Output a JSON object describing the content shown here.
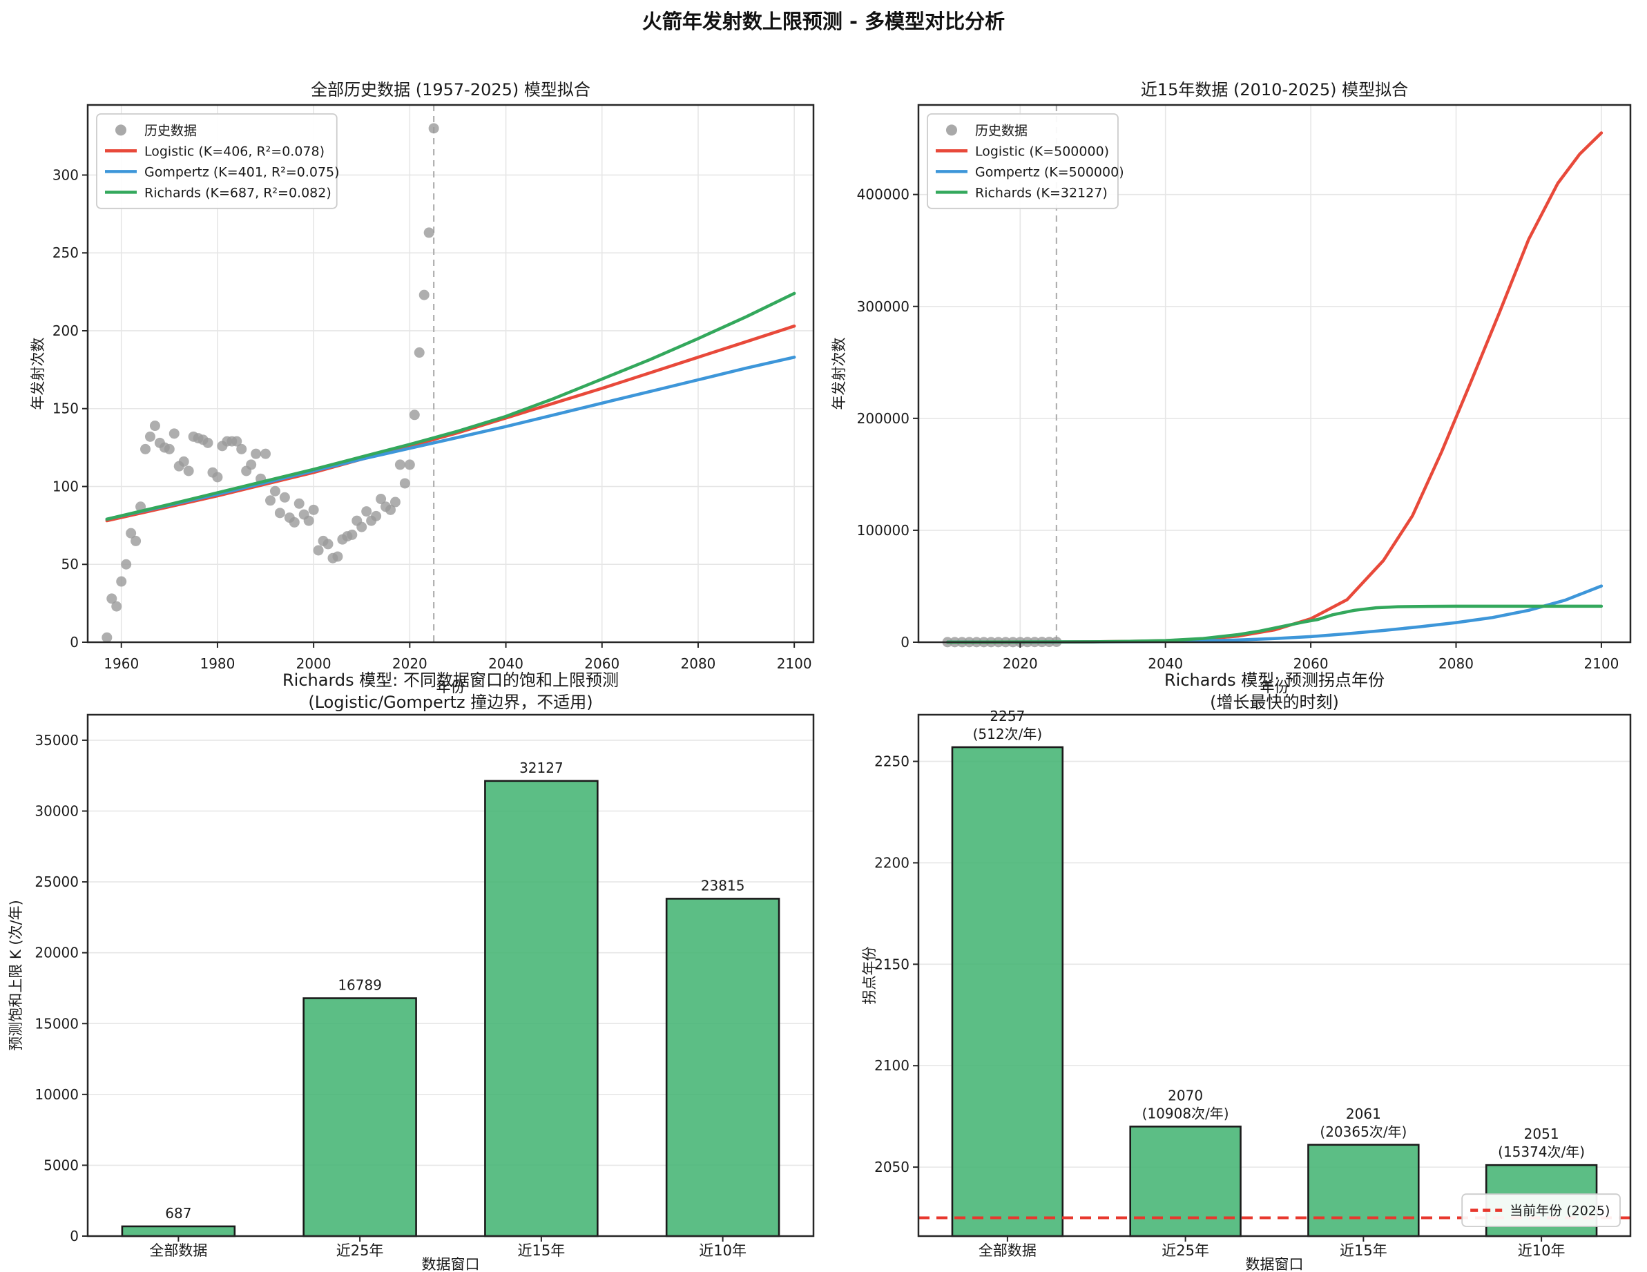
{
  "suptitle": "火箭年发射数上限预测 - 多模型对比分析",
  "colors": {
    "logistic_red": "#e8493a",
    "gompertz_blue": "#3d96d9",
    "richards_green": "#33a85c",
    "bar_green": "#3fb370",
    "bar_edge": "#1a1a1a",
    "history_gray": "#9a9a9a",
    "current_year_red": "#e8372d",
    "ref_line_gray": "#b0b0b0",
    "grid": "#e6e6e6",
    "spine": "#262626"
  },
  "chart_data": [
    {
      "id": "fit-all-history",
      "type": "scatter+line",
      "title_lines": [
        "全部历史数据 (1957-2025) 模型拟合"
      ],
      "xlabel": "年份",
      "ylabel": "年发射次数",
      "xlim": [
        1953,
        2104
      ],
      "ylim": [
        0,
        345
      ],
      "xticks": [
        1960,
        1980,
        2000,
        2020,
        2040,
        2060,
        2080,
        2100
      ],
      "yticks": [
        0,
        50,
        100,
        150,
        200,
        250,
        300
      ],
      "grid_x": true,
      "vline": {
        "x": 2025
      },
      "scatter": {
        "name": "历史数据",
        "color": "#9a9a9a",
        "years": [
          1957,
          1958,
          1959,
          1960,
          1961,
          1962,
          1963,
          1964,
          1965,
          1966,
          1967,
          1968,
          1969,
          1970,
          1971,
          1972,
          1973,
          1974,
          1975,
          1976,
          1977,
          1978,
          1979,
          1980,
          1981,
          1982,
          1983,
          1984,
          1985,
          1986,
          1987,
          1988,
          1989,
          1990,
          1991,
          1992,
          1993,
          1994,
          1995,
          1996,
          1997,
          1998,
          1999,
          2000,
          2001,
          2002,
          2003,
          2004,
          2005,
          2006,
          2007,
          2008,
          2009,
          2010,
          2011,
          2012,
          2013,
          2014,
          2015,
          2016,
          2017,
          2018,
          2019,
          2020,
          2021,
          2022,
          2023,
          2024,
          2025
        ],
        "values": [
          3,
          28,
          23,
          39,
          50,
          70,
          65,
          87,
          124,
          132,
          139,
          128,
          125,
          124,
          134,
          113,
          116,
          110,
          132,
          131,
          130,
          128,
          109,
          106,
          126,
          129,
          129,
          129,
          124,
          110,
          114,
          121,
          105,
          121,
          91,
          97,
          83,
          93,
          80,
          77,
          89,
          82,
          78,
          85,
          59,
          65,
          63,
          54,
          55,
          66,
          68,
          69,
          78,
          74,
          84,
          78,
          81,
          92,
          87,
          85,
          90,
          114,
          102,
          114,
          146,
          186,
          223,
          263,
          330
        ]
      },
      "series": [
        {
          "name": "Logistic (K=406, R²=0.078)",
          "color": "#e8493a",
          "points": [
            [
              1957,
              78
            ],
            [
              1970,
              87
            ],
            [
              1980,
              94
            ],
            [
              1990,
              101.5
            ],
            [
              2000,
              109
            ],
            [
              2010,
              117.5
            ],
            [
              2020,
              126
            ],
            [
              2030,
              134.5
            ],
            [
              2040,
              144
            ],
            [
              2050,
              153.5
            ],
            [
              2060,
              163
            ],
            [
              2070,
              173
            ],
            [
              2080,
              183
            ],
            [
              2090,
              193
            ],
            [
              2100,
              203
            ]
          ]
        },
        {
          "name": "Gompertz (K=401, R²=0.075)",
          "color": "#3d96d9",
          "points": [
            [
              1957,
              79
            ],
            [
              1970,
              88
            ],
            [
              1980,
              95
            ],
            [
              1990,
              102.5
            ],
            [
              2000,
              110
            ],
            [
              2010,
              117.5
            ],
            [
              2020,
              124.5
            ],
            [
              2030,
              131.5
            ],
            [
              2040,
              138.5
            ],
            [
              2050,
              146
            ],
            [
              2060,
              153.5
            ],
            [
              2070,
              161
            ],
            [
              2080,
              168.5
            ],
            [
              2090,
              176
            ],
            [
              2100,
              183
            ]
          ]
        },
        {
          "name": "Richards (K=687, R²=0.082)",
          "color": "#33a85c",
          "points": [
            [
              1957,
              79
            ],
            [
              1970,
              88.5
            ],
            [
              1980,
              96
            ],
            [
              1990,
              103.5
            ],
            [
              2000,
              111
            ],
            [
              2010,
              119
            ],
            [
              2020,
              127
            ],
            [
              2030,
              135.5
            ],
            [
              2040,
              145
            ],
            [
              2050,
              156.5
            ],
            [
              2060,
              169
            ],
            [
              2070,
              181.5
            ],
            [
              2080,
              195
            ],
            [
              2090,
              209
            ],
            [
              2100,
              224
            ]
          ]
        }
      ],
      "legend": {
        "pos": "upper-left",
        "entries": [
          {
            "kind": "marker",
            "color": "#9a9a9a",
            "label": "历史数据"
          },
          {
            "kind": "line",
            "color": "#e8493a",
            "label": "Logistic (K=406, R²=0.078)"
          },
          {
            "kind": "line",
            "color": "#3d96d9",
            "label": "Gompertz (K=401, R²=0.075)"
          },
          {
            "kind": "line",
            "color": "#33a85c",
            "label": "Richards (K=687, R²=0.082)"
          }
        ]
      }
    },
    {
      "id": "fit-recent-15",
      "type": "scatter+line",
      "title_lines": [
        "近15年数据 (2010-2025) 模型拟合"
      ],
      "xlabel": "年份",
      "ylabel": "年发射次数",
      "xlim": [
        2006,
        2104
      ],
      "ylim": [
        0,
        480000
      ],
      "xticks": [
        2020,
        2040,
        2060,
        2080,
        2100
      ],
      "yticks": [
        0,
        100000,
        200000,
        300000,
        400000
      ],
      "grid_x": true,
      "vline": {
        "x": 2025
      },
      "scatter": {
        "name": "历史数据",
        "color": "#9a9a9a",
        "years": [
          2010,
          2011,
          2012,
          2013,
          2014,
          2015,
          2016,
          2017,
          2018,
          2019,
          2020,
          2021,
          2022,
          2023,
          2024,
          2025
        ],
        "values": [
          74,
          84,
          78,
          81,
          92,
          87,
          85,
          90,
          114,
          102,
          114,
          146,
          186,
          223,
          263,
          330
        ]
      },
      "series": [
        {
          "name": "Logistic (K=500000)",
          "color": "#e8493a",
          "points": [
            [
              2010,
              60
            ],
            [
              2025,
              190
            ],
            [
              2030,
              400
            ],
            [
              2035,
              750
            ],
            [
              2040,
              1400
            ],
            [
              2045,
              2800
            ],
            [
              2050,
              5500
            ],
            [
              2055,
              11000
            ],
            [
              2060,
              21000
            ],
            [
              2065,
              38000
            ],
            [
              2070,
              73000
            ],
            [
              2074,
              113000
            ],
            [
              2078,
              170000
            ],
            [
              2082,
              232000
            ],
            [
              2086,
              295000
            ],
            [
              2090,
              360000
            ],
            [
              2094,
              410000
            ],
            [
              2097,
              436000
            ],
            [
              2100,
              455000
            ]
          ]
        },
        {
          "name": "Gompertz (K=500000)",
          "color": "#3d96d9",
          "points": [
            [
              2010,
              80
            ],
            [
              2030,
              300
            ],
            [
              2040,
              700
            ],
            [
              2050,
              2000
            ],
            [
              2055,
              3200
            ],
            [
              2060,
              5000
            ],
            [
              2065,
              7500
            ],
            [
              2070,
              10500
            ],
            [
              2075,
              13800
            ],
            [
              2080,
              17500
            ],
            [
              2085,
              22000
            ],
            [
              2090,
              28500
            ],
            [
              2095,
              37500
            ],
            [
              2100,
              50200
            ]
          ]
        },
        {
          "name": "Richards (K=32127)",
          "color": "#33a85c",
          "points": [
            [
              2010,
              80
            ],
            [
              2030,
              400
            ],
            [
              2035,
              800
            ],
            [
              2040,
              1500
            ],
            [
              2045,
              3200
            ],
            [
              2050,
              6800
            ],
            [
              2053,
              10000
            ],
            [
              2056,
              14000
            ],
            [
              2059,
              18000
            ],
            [
              2061,
              20365
            ],
            [
              2063,
              24500
            ],
            [
              2066,
              28500
            ],
            [
              2069,
              30800
            ],
            [
              2072,
              31700
            ],
            [
              2076,
              32050
            ],
            [
              2080,
              32127
            ],
            [
              2090,
              32127
            ],
            [
              2100,
              32127
            ]
          ]
        }
      ],
      "legend": {
        "pos": "upper-left",
        "entries": [
          {
            "kind": "marker",
            "color": "#9a9a9a",
            "label": "历史数据"
          },
          {
            "kind": "line",
            "color": "#e8493a",
            "label": "Logistic (K=500000)"
          },
          {
            "kind": "line",
            "color": "#3d96d9",
            "label": "Gompertz (K=500000)"
          },
          {
            "kind": "line",
            "color": "#33a85c",
            "label": "Richards (K=32127)"
          }
        ]
      }
    },
    {
      "id": "saturation-limits",
      "type": "bar",
      "title_lines": [
        "Richards 模型: 不同数据窗口的饱和上限预测",
        "(Logistic/Gompertz 撞边界，不适用)"
      ],
      "xlabel": "数据窗口",
      "ylabel": "预测饱和上限 K (次/年)",
      "categories": [
        "全部数据",
        "近25年",
        "近15年",
        "近10年"
      ],
      "values": [
        687,
        16789,
        32127,
        23815
      ],
      "bar_labels": [
        [
          "687"
        ],
        [
          "16789"
        ],
        [
          "32127"
        ],
        [
          "23815"
        ]
      ],
      "ylim": [
        0,
        36800
      ],
      "yticks": [
        0,
        5000,
        10000,
        15000,
        20000,
        25000,
        30000,
        35000
      ],
      "grid_x": false,
      "bar_color": "#3fb370"
    },
    {
      "id": "inflection-years",
      "type": "bar",
      "title_lines": [
        "Richards 模型: 预测拐点年份",
        "(增长最快的时刻)"
      ],
      "xlabel": "数据窗口",
      "ylabel": "拐点年份",
      "categories": [
        "全部数据",
        "近25年",
        "近15年",
        "近10年"
      ],
      "values": [
        2257,
        2070,
        2061,
        2051
      ],
      "bar_labels": [
        [
          "2257",
          "(512次/年)"
        ],
        [
          "2070",
          "(10908次/年)"
        ],
        [
          "2061",
          "(20365次/年)"
        ],
        [
          "2051",
          "(15374次/年)"
        ]
      ],
      "ylim": [
        2016,
        2273
      ],
      "yticks": [
        2050,
        2100,
        2150,
        2200,
        2250
      ],
      "grid_x": false,
      "bar_color": "#3fb370",
      "hline": {
        "y": 2025,
        "label": "当前年份 (2025)",
        "color": "#e8372d"
      },
      "legend": {
        "pos": "lower-right",
        "entries": [
          {
            "kind": "dash",
            "color": "#e8372d",
            "label": "当前年份 (2025)"
          }
        ]
      }
    }
  ]
}
